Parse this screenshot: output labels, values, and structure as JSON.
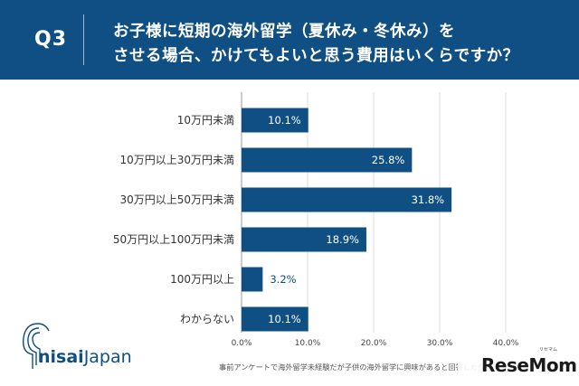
{
  "header": {
    "qnum": "Q3",
    "line1": "お子様に短期の海外留学（夏休み・冬休み）を",
    "line2": "させる場合、かけてもよいと思う費用はいくらですか？"
  },
  "chart_data": {
    "type": "bar",
    "orientation": "horizontal",
    "categories": [
      "10万円未満",
      "10万円以上30万円未満",
      "30万円以上50万円未満",
      "50万円以上100万円未満",
      "100万円以上",
      "わからない"
    ],
    "values": [
      10.1,
      25.8,
      31.8,
      18.9,
      3.2,
      10.1
    ],
    "value_labels": [
      "10.1%",
      "25.8%",
      "31.8%",
      "18.9%",
      "3.2%",
      "10.1%"
    ],
    "xlim": [
      0,
      40
    ],
    "ticks": [
      0,
      10,
      20,
      30,
      40
    ],
    "tick_labels": [
      "0.0%",
      "10.0%",
      "20.0%",
      "30.0%",
      "40.0%"
    ],
    "grid": true,
    "bar_color": "#0f4f84"
  },
  "footnote": "事前アンケートで海外留学未経験だが子供の海外留学に興味があると回答した保護者",
  "logo": {
    "bold": "nisai",
    "light": "Japan"
  },
  "watermark": {
    "text": "ReseMom",
    "ruby": "リセマム"
  }
}
